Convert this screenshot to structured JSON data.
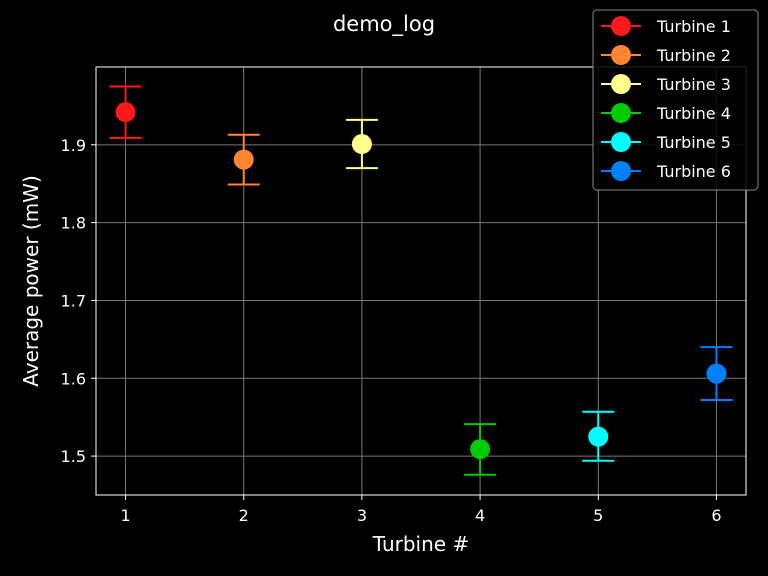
{
  "chart_data": {
    "type": "scatter",
    "title": "demo_log",
    "xlabel": "Turbine #",
    "ylabel": "Average power (mW)",
    "xlim": [
      0.75,
      6.25
    ],
    "ylim": [
      1.45,
      2.0
    ],
    "xticks": [
      1,
      2,
      3,
      4,
      5,
      6
    ],
    "yticks": [
      1.5,
      1.6,
      1.7,
      1.8,
      1.9
    ],
    "grid": true,
    "legend_position": "top-right",
    "series": [
      {
        "name": "Turbine 1",
        "x": 1,
        "y": 1.942,
        "err_low": 1.909,
        "err_high": 1.975,
        "color": "#ff1a1a"
      },
      {
        "name": "Turbine 2",
        "x": 2,
        "y": 1.881,
        "err_low": 1.849,
        "err_high": 1.913,
        "color": "#ff8533"
      },
      {
        "name": "Turbine 3",
        "x": 3,
        "y": 1.901,
        "err_low": 1.87,
        "err_high": 1.932,
        "color": "#ffff8c"
      },
      {
        "name": "Turbine 4",
        "x": 4,
        "y": 1.509,
        "err_low": 1.476,
        "err_high": 1.541,
        "color": "#00cc00"
      },
      {
        "name": "Turbine 5",
        "x": 5,
        "y": 1.525,
        "err_low": 1.494,
        "err_high": 1.557,
        "color": "#00ffff"
      },
      {
        "name": "Turbine 6",
        "x": 6,
        "y": 1.606,
        "err_low": 1.572,
        "err_high": 1.64,
        "color": "#0080ff"
      }
    ]
  }
}
